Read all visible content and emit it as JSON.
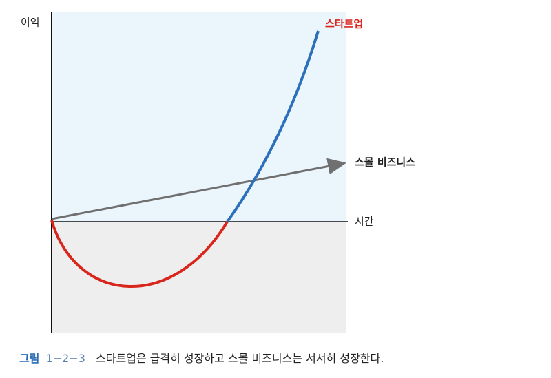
{
  "axes": {
    "y_label": "이익",
    "x_label": "시간"
  },
  "curves": {
    "startup": "스타트업",
    "small_business": "스몰 비즈니스"
  },
  "caption": {
    "prefix": "그림",
    "number": "1−2−3",
    "text": "스타트업은 급격히 성장하고 스몰 비즈니스는 서서히 성장한다."
  }
}
